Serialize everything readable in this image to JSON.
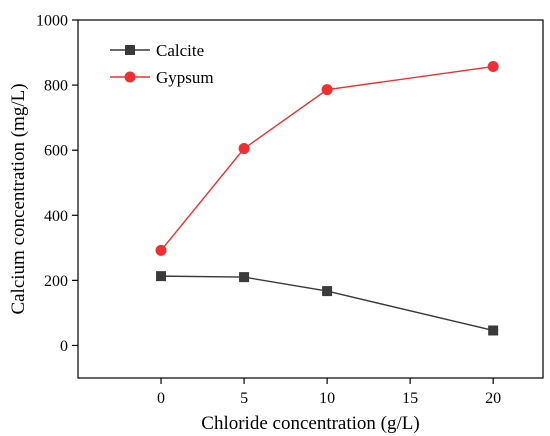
{
  "chart_data": {
    "type": "line",
    "title": "",
    "xlabel": "Chloride concentration (g/L)",
    "ylabel": "Calcium concentration (mg/L)",
    "xlim": [
      -5,
      23
    ],
    "ylim": [
      -100,
      1000
    ],
    "x_ticks": [
      0,
      5,
      10,
      15,
      20
    ],
    "y_ticks": [
      0,
      200,
      400,
      600,
      800,
      1000
    ],
    "grid": false,
    "legend_position": "top-left",
    "series": [
      {
        "name": "Calcite",
        "marker": "square",
        "color": "#3a3a3a",
        "x": [
          0,
          5,
          10,
          20
        ],
        "y": [
          213,
          210,
          167,
          46
        ]
      },
      {
        "name": "Gypsum",
        "marker": "circle",
        "color": "#f03030",
        "x": [
          0,
          5,
          10,
          20
        ],
        "y": [
          292,
          605,
          786,
          857
        ]
      }
    ]
  }
}
